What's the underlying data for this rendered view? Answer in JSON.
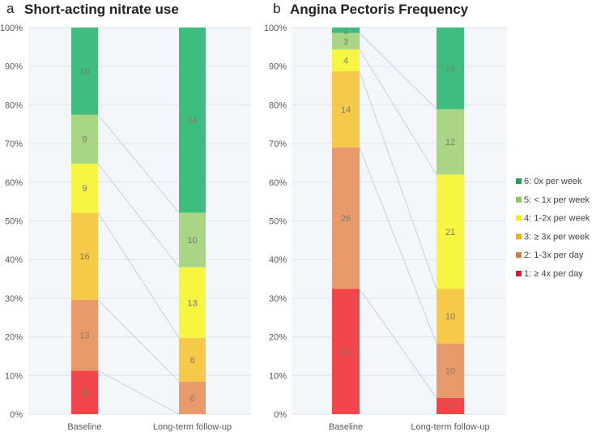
{
  "legend": [
    {
      "label": "6: 0x per week",
      "color": "#19a55a"
    },
    {
      "label": "5: < 1x per week",
      "color": "#92c45a"
    },
    {
      "label": "4: 1-2x per week",
      "color": "#f2f200"
    },
    {
      "label": "3: ≥ 3x per week",
      "color": "#f0b400"
    },
    {
      "label": "2: 1-3x per day",
      "color": "#e07a3a"
    },
    {
      "label": "1:  ≥ 4x per day",
      "color": "#e01525"
    }
  ],
  "segment_colors": [
    "#f2474a",
    "#e99a6a",
    "#f7c948",
    "#f5f542",
    "#a8d685",
    "#3fbd7e"
  ],
  "chart_data": [
    {
      "type": "bar",
      "stacked": "percent",
      "panel_label": "a",
      "title": "Short-acting nitrate use",
      "categories": [
        "Baseline",
        "Long-term follow-up"
      ],
      "series": [
        {
          "name": "1: ≥ 4x per day",
          "values": [
            8,
            0
          ]
        },
        {
          "name": "2: 1-3x per day",
          "values": [
            13,
            6
          ]
        },
        {
          "name": "3: ≥ 3x per week",
          "values": [
            16,
            8
          ]
        },
        {
          "name": "4: 1-2x per week",
          "values": [
            9,
            13
          ]
        },
        {
          "name": "5: < 1x per week",
          "values": [
            9,
            10
          ]
        },
        {
          "name": "6: 0x per week",
          "values": [
            16,
            34
          ]
        }
      ],
      "yticks": [
        "0%",
        "10%",
        "20%",
        "30%",
        "40%",
        "50%",
        "60%",
        "70%",
        "80%",
        "90%",
        "100%"
      ],
      "ylim": [
        0,
        100
      ],
      "grid": true
    },
    {
      "type": "bar",
      "stacked": "percent",
      "panel_label": "b",
      "title": "Angina Pectoris Frequency",
      "categories": [
        "Baseline",
        "Long-term follow-up"
      ],
      "series": [
        {
          "name": "1: ≥ 4x per day",
          "values": [
            23,
            3
          ]
        },
        {
          "name": "2: 1-3x per day",
          "values": [
            26,
            10
          ]
        },
        {
          "name": "3: ≥ 3x per week",
          "values": [
            14,
            10
          ]
        },
        {
          "name": "4: 1-2x per week",
          "values": [
            4,
            21
          ]
        },
        {
          "name": "5: < 1x per week",
          "values": [
            3,
            12
          ]
        },
        {
          "name": "6: 0x per week",
          "values": [
            1,
            15
          ]
        }
      ],
      "yticks": [
        "0%",
        "10%",
        "20%",
        "30%",
        "40%",
        "50%",
        "60%",
        "70%",
        "80%",
        "90%",
        "100%"
      ],
      "ylim": [
        0,
        100
      ],
      "grid": true,
      "legend_position": "right"
    }
  ]
}
